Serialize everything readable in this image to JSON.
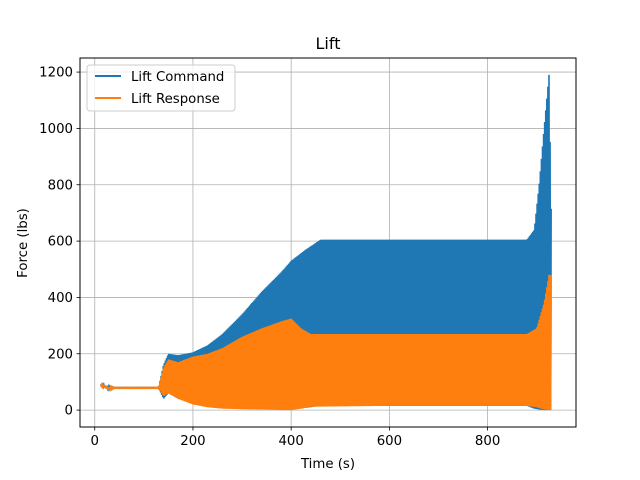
{
  "chart_data": {
    "type": "line",
    "title": "Lift",
    "xlabel": "Time (s)",
    "ylabel": "Force (lbs)",
    "xlim": [
      -30,
      980
    ],
    "ylim": [
      -60,
      1250
    ],
    "xticks": [
      0,
      200,
      400,
      600,
      800
    ],
    "yticks": [
      0,
      200,
      400,
      600,
      800,
      1000,
      1200
    ],
    "grid": true,
    "legend_position": "top-left",
    "series": [
      {
        "name": "Lift Command",
        "color": "#1f77b4",
        "envelope_x": [
          12,
          20,
          30,
          40,
          130,
          140,
          150,
          170,
          200,
          230,
          260,
          300,
          340,
          380,
          400,
          430,
          460,
          600,
          880,
          895,
          905,
          915,
          925,
          930
        ],
        "envelope_max": [
          92,
          88,
          82,
          80,
          80,
          160,
          200,
          195,
          205,
          230,
          270,
          340,
          420,
          490,
          530,
          570,
          605,
          605,
          605,
          640,
          800,
          1000,
          1190,
          650
        ],
        "envelope_min": [
          88,
          80,
          75,
          78,
          78,
          40,
          60,
          40,
          30,
          20,
          15,
          10,
          5,
          3,
          2,
          8,
          15,
          15,
          15,
          5,
          2,
          0,
          0,
          0
        ]
      },
      {
        "name": "Lift Response",
        "color": "#ff7f0e",
        "envelope_x": [
          12,
          20,
          30,
          40,
          130,
          140,
          150,
          170,
          200,
          230,
          260,
          300,
          340,
          380,
          400,
          420,
          440,
          600,
          880,
          900,
          915,
          925,
          930
        ],
        "envelope_max": [
          92,
          88,
          80,
          80,
          80,
          150,
          180,
          170,
          190,
          200,
          220,
          260,
          290,
          315,
          325,
          290,
          270,
          270,
          270,
          290,
          380,
          480,
          480
        ],
        "envelope_min": [
          88,
          78,
          72,
          78,
          78,
          50,
          60,
          40,
          20,
          10,
          5,
          3,
          2,
          0,
          0,
          5,
          12,
          15,
          15,
          10,
          2,
          0,
          0
        ]
      }
    ]
  }
}
